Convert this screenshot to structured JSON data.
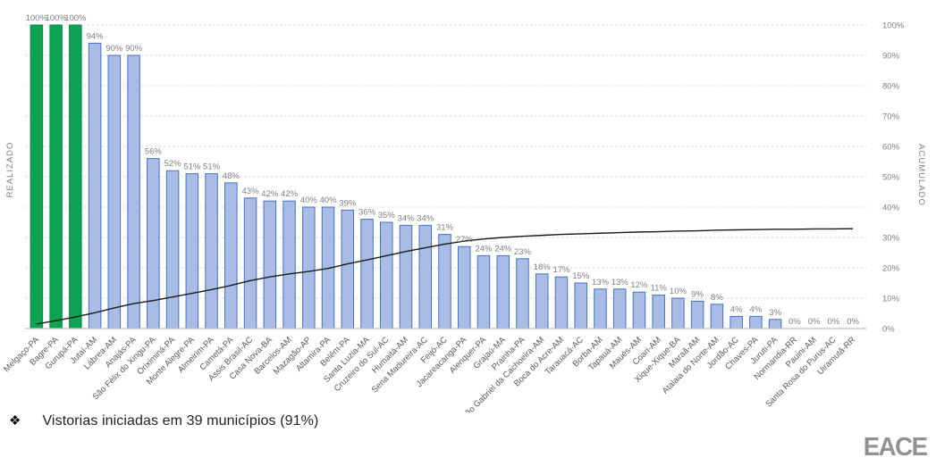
{
  "chart_data": {
    "type": "bar",
    "title": "",
    "left_axis_label": "REALIZADO",
    "right_axis_label": "ACUMULADO",
    "ylim": [
      0,
      100
    ],
    "grid": "dashed-horizontal-every-10pct",
    "legend": "none",
    "right_axis_ticks": [
      "0%",
      "10%",
      "20%",
      "30%",
      "40%",
      "50%",
      "60%",
      "70%",
      "80%",
      "90%",
      "100%"
    ],
    "value_label_suffix": "%",
    "categories": [
      "Melgaço-PA",
      "Bagre-PA",
      "Gurupá-PA",
      "Jutaí-AM",
      "Lábrea-AM",
      "Anajás-PA",
      "São Félix do Xingu-PA",
      "Oriximiná-PA",
      "Monte Alegre-PA",
      "Almeirim-PA",
      "Cametá-PA",
      "Assis Brasil-AC",
      "Casa Nova-BA",
      "Barcelos-AM",
      "Mazagão-AP",
      "Altamira-PA",
      "Belém-PA",
      "Santa Luzia-MA",
      "Cruzeiro do Sul-AC",
      "Humaitá-AM",
      "Sena Madureira-AC",
      "Feijó-AC",
      "Jacareacanga-PA",
      "Alenquer-PA",
      "Grajaú-MA",
      "Prainha-PA",
      "São Gabriel da Cachoeira-AM",
      "Boca do Acre-AM",
      "Tarauacá-AC",
      "Borba-AM",
      "Tapauá-AM",
      "Maués-AM",
      "Coari-AM",
      "Xique-Xique-BA",
      "Maraã-AM",
      "Atalaia do Norte-AM",
      "Jordão-AC",
      "Chaves-PA",
      "Juruti-PA",
      "Normandia-RR",
      "Pauini-AM",
      "Santa Rosa do Purus-AC",
      "Uiramutã-RR"
    ],
    "series": [
      {
        "name": "REALIZADO",
        "type": "bar",
        "values": [
          100,
          100,
          100,
          94,
          90,
          90,
          56,
          52,
          51,
          51,
          48,
          43,
          42,
          42,
          40,
          40,
          39,
          36,
          35,
          34,
          34,
          31,
          27,
          24,
          24,
          23,
          18,
          17,
          15,
          13,
          13,
          12,
          11,
          10,
          9,
          8,
          4,
          4,
          3,
          0,
          0,
          0,
          0
        ]
      },
      {
        "name": "ACUMULADO",
        "type": "line",
        "values": [
          1.5,
          2.6,
          3.8,
          5.2,
          6.8,
          8.2,
          9.2,
          10.4,
          11.6,
          12.8,
          14.2,
          15.8,
          17,
          18,
          18.8,
          19.8,
          21.3,
          22.6,
          24,
          25.4,
          26.6,
          27.8,
          28.8,
          29.5,
          30,
          30.4,
          30.7,
          31,
          31.2,
          31.4,
          31.6,
          31.8,
          31.9,
          32.1,
          32.2,
          32.4,
          32.5,
          32.6,
          32.7,
          32.7,
          32.8,
          32.8,
          32.9
        ]
      }
    ],
    "colors": {
      "bar_fill": "#A9BCE5",
      "bar_border": "#4472C4",
      "highlight_fill": "#0DA353",
      "highlight_border": "#0A8A47",
      "highlight_count": 3,
      "line": "#1A1A1A",
      "grid": "#D9D9D9",
      "axis": "#BFBFBF",
      "value_label": "#7F7F7F",
      "category_label": "#595959",
      "tick_label": "#808080"
    }
  },
  "footer": {
    "bullet": "❖",
    "text": "Vistorias iniciadas em 39 municípios (91%)"
  },
  "logo": {
    "text": "EACE"
  }
}
